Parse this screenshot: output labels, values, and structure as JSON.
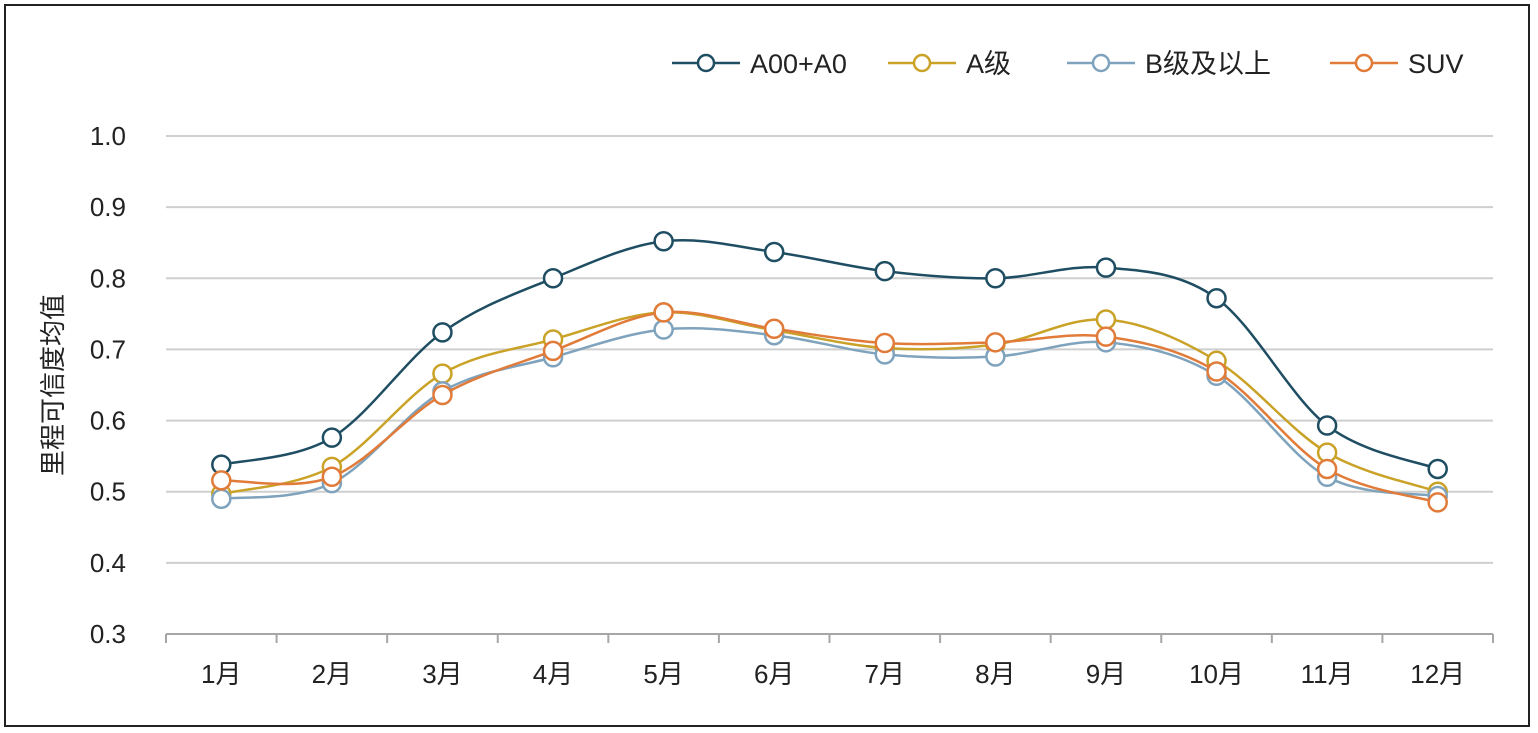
{
  "chart_data": {
    "type": "line",
    "title": "",
    "xlabel": "",
    "ylabel": "里程可信度均值",
    "ylim": [
      0.3,
      1.0
    ],
    "yticks": [
      "1.0",
      "0.9",
      "0.8",
      "0.7",
      "0.6",
      "0.5",
      "0.4",
      "0.3"
    ],
    "categories": [
      "1月",
      "2月",
      "3月",
      "4月",
      "5月",
      "6月",
      "7月",
      "8月",
      "9月",
      "10月",
      "11月",
      "12月"
    ],
    "grid": true,
    "legend_position": "top-right",
    "smooth": true,
    "series": [
      {
        "name": "A00+A0",
        "color": "#1f4e63",
        "values": [
          0.538,
          0.576,
          0.724,
          0.8,
          0.852,
          0.837,
          0.81,
          0.8,
          0.815,
          0.772,
          0.593,
          0.532
        ]
      },
      {
        "name": "A级",
        "color": "#c9a227",
        "values": [
          0.497,
          0.535,
          0.666,
          0.714,
          0.752,
          0.727,
          0.702,
          0.707,
          0.742,
          0.684,
          0.555,
          0.5
        ]
      },
      {
        "name": "B级及以上",
        "color": "#7fa3bd",
        "values": [
          0.49,
          0.512,
          0.641,
          0.689,
          0.728,
          0.72,
          0.693,
          0.69,
          0.71,
          0.663,
          0.521,
          0.494
        ]
      },
      {
        "name": "SUV",
        "color": "#e07b39",
        "values": [
          0.516,
          0.521,
          0.636,
          0.698,
          0.752,
          0.729,
          0.709,
          0.71,
          0.718,
          0.669,
          0.532,
          0.485
        ]
      }
    ]
  }
}
